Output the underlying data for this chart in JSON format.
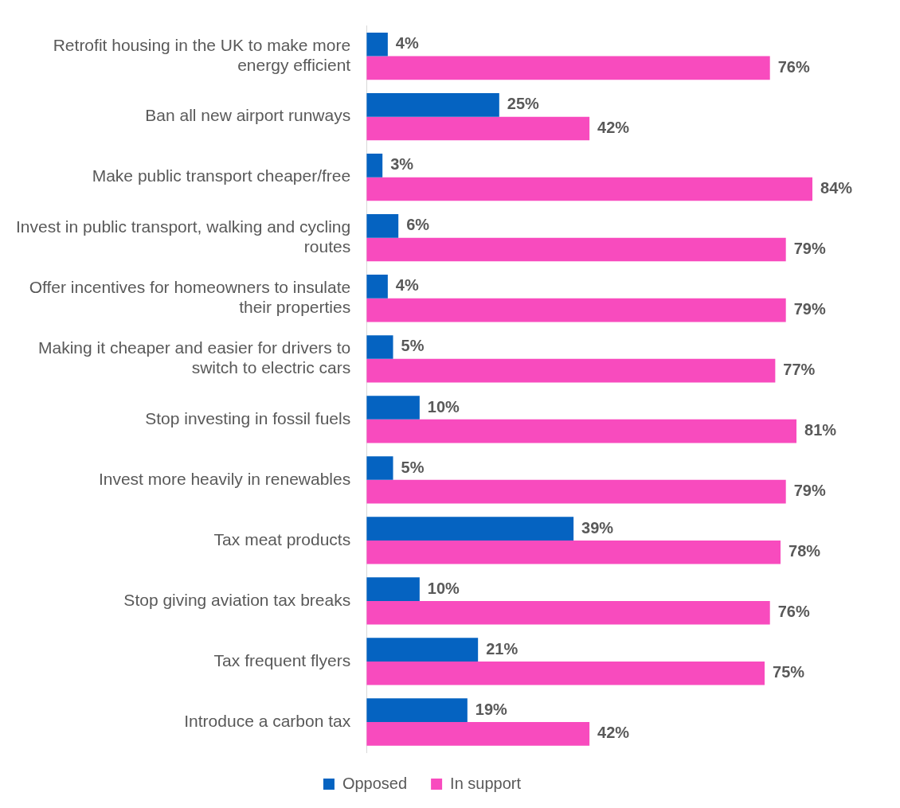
{
  "chart_data": {
    "type": "bar",
    "orientation": "horizontal",
    "categories": [
      "Retrofit housing in the UK to make more energy efficient",
      "Ban all new airport runways",
      "Make public transport cheaper/free",
      "Invest in public transport, walking and cycling routes",
      "Offer incentives for homeowners to insulate their properties",
      "Making it cheaper and easier for drivers to switch to electric cars",
      "Stop investing in fossil fuels",
      "Invest more heavily in renewables",
      "Tax meat products",
      "Stop giving aviation tax breaks",
      "Tax frequent flyers",
      "Introduce a carbon tax"
    ],
    "series": [
      {
        "name": "Opposed",
        "color": "#0563c1",
        "values": [
          4,
          25,
          3,
          6,
          4,
          5,
          10,
          5,
          39,
          10,
          21,
          19
        ],
        "value_labels": [
          "4%",
          "25%",
          "3%",
          "6%",
          "4%",
          "5%",
          "10%",
          "5%",
          "39%",
          "10%",
          "21%",
          "19%"
        ]
      },
      {
        "name": "In support",
        "color": "#f84bbe",
        "values": [
          76,
          42,
          84,
          79,
          79,
          77,
          81,
          79,
          78,
          76,
          75,
          42
        ],
        "value_labels": [
          "76%",
          "42%",
          "84%",
          "79%",
          "79%",
          "77%",
          "81%",
          "79%",
          "78%",
          "76%",
          "75%",
          "42%"
        ]
      }
    ],
    "legend": "bottom",
    "tick_labels": "y"
  }
}
